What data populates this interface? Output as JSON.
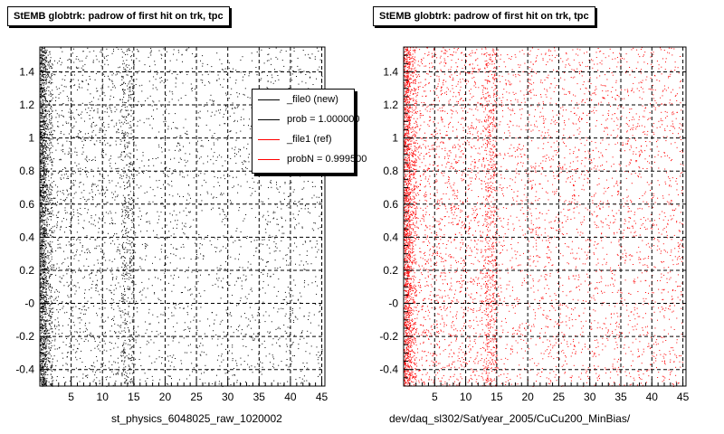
{
  "chart_data": [
    {
      "type": "scatter",
      "title": "StEMB globtrk: padrow of first hit on trk, tpc",
      "xlabel": "st_physics_6048025_raw_1020002",
      "ylabel": "",
      "xlim": [
        0,
        45.5
      ],
      "ylim": [
        -0.5,
        1.55
      ],
      "x_ticks": [
        5,
        10,
        15,
        20,
        25,
        30,
        35,
        40,
        45
      ],
      "y_ticks": [
        -0.4,
        -0.2,
        0,
        0.2,
        0.4,
        0.6,
        0.8,
        1,
        1.2,
        1.4
      ],
      "y_tick_labels": [
        "-0.4",
        "-0.2",
        "-0",
        "0.2",
        "0.4",
        "0.6",
        "0.8",
        "1",
        "1.2",
        "1.4"
      ],
      "grid": true,
      "marker_color": "#000000",
      "density_profile": [
        {
          "x_range": [
            0,
            1
          ],
          "relative_density": 1.0
        },
        {
          "x_range": [
            1,
            2
          ],
          "relative_density": 0.35
        },
        {
          "x_range": [
            2,
            13
          ],
          "relative_density": 0.07
        },
        {
          "x_range": [
            13,
            15
          ],
          "relative_density": 0.22
        },
        {
          "x_range": [
            15,
            45
          ],
          "relative_density": 0.04
        }
      ],
      "legend": {
        "placement": "top-right",
        "entries": [
          {
            "label": "_file0 (new)",
            "color": "#000000"
          },
          {
            "label": "prob = 1.000000",
            "color": "#000000"
          },
          {
            "label": "_file1 (ref)",
            "color": "#ff0000"
          },
          {
            "label": "probN = 0.999500",
            "color": "#ff0000"
          }
        ]
      }
    },
    {
      "type": "scatter",
      "title": "StEMB globtrk: padrow of first hit on trk, tpc",
      "xlabel": "dev/daq_sl302/Sat/year_2005/CuCu200_MinBias/",
      "ylabel": "",
      "xlim": [
        0,
        45.5
      ],
      "ylim": [
        -0.5,
        1.55
      ],
      "x_ticks": [
        5,
        10,
        15,
        20,
        25,
        30,
        35,
        40,
        45
      ],
      "y_ticks": [
        -0.4,
        -0.2,
        0,
        0.2,
        0.4,
        0.6,
        0.8,
        1,
        1.2,
        1.4
      ],
      "y_tick_labels": [
        "-0.4",
        "-0.2",
        "-0",
        "0.2",
        "0.4",
        "0.6",
        "0.8",
        "1",
        "1.2",
        "1.4"
      ],
      "grid": true,
      "marker_color": "#ff0000",
      "density_profile": [
        {
          "x_range": [
            0,
            1
          ],
          "relative_density": 1.0
        },
        {
          "x_range": [
            1,
            2
          ],
          "relative_density": 0.4
        },
        {
          "x_range": [
            2,
            13
          ],
          "relative_density": 0.1
        },
        {
          "x_range": [
            13,
            15
          ],
          "relative_density": 0.28
        },
        {
          "x_range": [
            15,
            45
          ],
          "relative_density": 0.06
        }
      ]
    }
  ]
}
